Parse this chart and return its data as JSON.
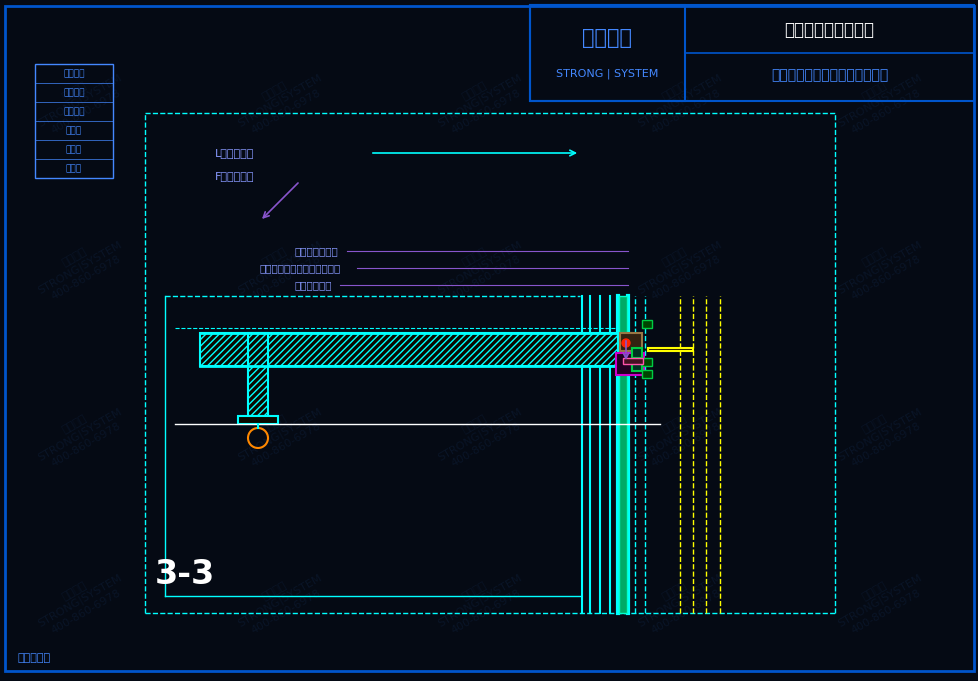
{
  "bg_color": "#050a14",
  "border_color": "#0055cc",
  "cyan": "#00ffff",
  "yellow": "#ffff00",
  "green": "#00cc44",
  "magenta": "#cc00cc",
  "purple": "#8855cc",
  "orange": "#ff8800",
  "white": "#ffffff",
  "blue_text": "#4488ff",
  "light_blue": "#00bbff",
  "label_color": "#8899ff",
  "title": "3-3",
  "tags": [
    "安全防火",
    "环保节能",
    "超级防腐",
    "大跨度",
    "大通透",
    "更纤细"
  ],
  "company_name": "西创系统",
  "company_sub": "STRONG | SYSTEM",
  "project_name": "阿那亚雾灵山图书馆",
  "company_full": "西创金属科技（江苏）有限公司",
  "patent_text": "专利产品！"
}
